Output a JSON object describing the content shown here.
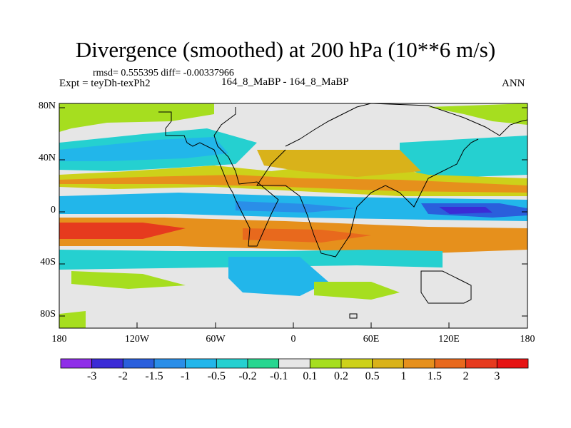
{
  "title": "Divergence (smoothed) at 200 hPa (10**6 m/s)",
  "stats": "rmsd= 0.555395 diff= -0.00337966",
  "expt": "Expt = teyDh-texPh2",
  "case": "164_8_MaBP - 164_8_MaBP",
  "season": "ANN",
  "lat_ticks": [
    "80N",
    "40N",
    "0",
    "40S",
    "80S"
  ],
  "lon_ticks": [
    "180",
    "120W",
    "60W",
    "0",
    "60E",
    "120E",
    "180"
  ],
  "colorbar": {
    "labels": [
      "-3",
      "-2",
      "-1.5",
      "-1",
      "-0.5",
      "-0.2",
      "-0.1",
      "0.1",
      "0.2",
      "0.5",
      "1",
      "1.5",
      "2",
      "3"
    ],
    "colors": [
      "#8f2ee8",
      "#3b2bd6",
      "#2a5fdc",
      "#2a8ee8",
      "#22b6ea",
      "#25d0d0",
      "#28d690",
      "#e6e6e6",
      "#a6de1f",
      "#cdd11a",
      "#d9b21a",
      "#e6901c",
      "#e8691d",
      "#e63a1e",
      "#e61414"
    ]
  },
  "colors": {
    "land_outline": "#000000",
    "neutral_fill": "#e6e6e6"
  }
}
